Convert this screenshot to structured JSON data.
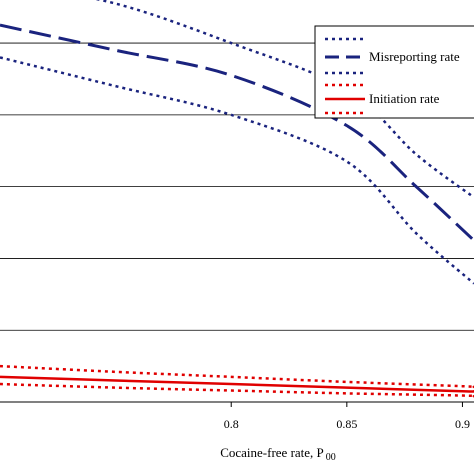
{
  "chart_data": {
    "type": "line",
    "title": "",
    "xlabel": "Cocaine-free rate, P",
    "xlabel_subscript": "00",
    "ylabel": "",
    "xlim": [
      0.7,
      0.905
    ],
    "ylim": [
      0.0,
      0.56
    ],
    "x_ticks": [
      {
        "value": 0.8,
        "label": "0.8"
      },
      {
        "value": 0.85,
        "label": "0.85"
      },
      {
        "value": 0.9,
        "label": "0.9"
      }
    ],
    "y_gridlines": [
      0.1,
      0.2,
      0.3,
      0.4,
      0.5
    ],
    "grid": "horizontal",
    "legend": {
      "placement": "top-right",
      "entries": [
        {
          "label": "Misreporting rate",
          "series": "Misreporting rate"
        },
        {
          "label": "Initiation rate",
          "series": "Initiation rate"
        }
      ]
    },
    "colors": {
      "misreporting": "#1a237e",
      "initiation": "#e00000",
      "grid": "#000000"
    },
    "series": [
      {
        "name": "Misreporting rate",
        "style": "dashed",
        "x": [
          0.7,
          0.75,
          0.8,
          0.85,
          0.88,
          0.905
        ],
        "y": [
          0.525,
          0.49,
          0.455,
          0.385,
          0.3,
          0.225
        ]
      },
      {
        "name": "Misreporting rate upper bound",
        "style": "dotted",
        "x": [
          0.7,
          0.75,
          0.8,
          0.85,
          0.88,
          0.905
        ],
        "y": [
          0.585,
          0.555,
          0.5,
          0.435,
          0.345,
          0.285
        ]
      },
      {
        "name": "Misreporting rate lower bound",
        "style": "dotted",
        "x": [
          0.7,
          0.75,
          0.8,
          0.85,
          0.88,
          0.905
        ],
        "y": [
          0.48,
          0.44,
          0.4,
          0.335,
          0.235,
          0.165
        ]
      },
      {
        "name": "Initiation rate",
        "style": "solid",
        "x": [
          0.7,
          0.75,
          0.8,
          0.85,
          0.9,
          0.905
        ],
        "y": [
          0.035,
          0.03,
          0.025,
          0.02,
          0.015,
          0.015
        ]
      },
      {
        "name": "Initiation rate upper bound",
        "style": "dotted",
        "x": [
          0.7,
          0.75,
          0.8,
          0.85,
          0.9,
          0.905
        ],
        "y": [
          0.05,
          0.042,
          0.035,
          0.028,
          0.022,
          0.021
        ]
      },
      {
        "name": "Initiation rate lower bound",
        "style": "dotted",
        "x": [
          0.7,
          0.75,
          0.8,
          0.85,
          0.9,
          0.905
        ],
        "y": [
          0.025,
          0.02,
          0.016,
          0.012,
          0.009,
          0.008
        ]
      }
    ]
  }
}
